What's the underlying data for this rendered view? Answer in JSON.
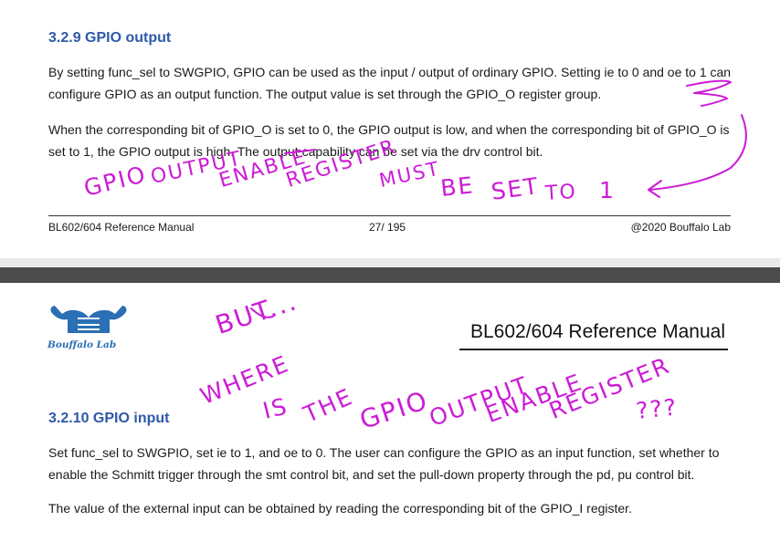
{
  "page1": {
    "heading": "3.2.9  GPIO output",
    "paragraphs": [
      "By setting func_sel to SWGPIO, GPIO can be used as the input / output of ordinary GPIO. Setting ie to 0 and oe to 1 can configure GPIO as an output function. The output value is set through the GPIO_O register group.",
      "When the corresponding bit of GPIO_O is set to 0, the GPIO output is low, and when the corresponding bit of GPIO_O is set to 1, the GPIO output is high. The output capability can be set via the drv control bit."
    ],
    "footer": {
      "left": "BL602/604 Reference Manual",
      "center": "27/ 195",
      "right": "@2020 Bouffalo Lab"
    }
  },
  "page2": {
    "logo_text": "Bouffalo Lab",
    "header_title": "BL602/604 Reference Manual",
    "heading": "3.2.10  GPIO input",
    "paragraphs": [
      "Set func_sel to SWGPIO, set ie to 1, and oe to 0. The user can configure the GPIO as an input function, set whether to enable the Schmitt trigger through the smt control bit, and set the pull-down property through the pd, pu control bit.",
      "The value of the external input can be obtained by reading the corresponding bit of the GPIO_I register."
    ]
  },
  "annotations": {
    "top": [
      "GPIO",
      "OUTPUT",
      "ENABLE",
      "REGISTER",
      "MUST",
      "BE",
      "SET",
      "TO",
      "1"
    ],
    "bottom": [
      "BUT...",
      "WHERE",
      "IS",
      "THE",
      "GPIO",
      "OUTPUT",
      "ENABLE",
      "REGISTER",
      "???"
    ]
  },
  "colors": {
    "heading": "#2e59a8",
    "ink": "#cc1bd6",
    "logo": "#2b6fb4"
  }
}
